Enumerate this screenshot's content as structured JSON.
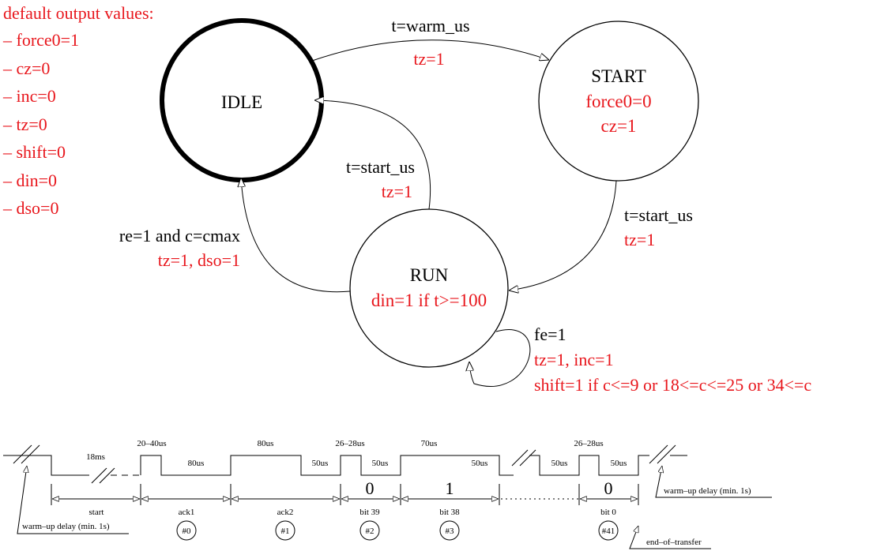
{
  "colors": {
    "black": "#000000",
    "red": "#e8161c"
  },
  "defaults": {
    "title": "default output values:",
    "items": [
      "– force0=1",
      "– cz=0",
      "– inc=0",
      "– tz=0",
      "– shift=0",
      "– din=0",
      "– dso=0"
    ]
  },
  "states": {
    "idle": {
      "name": "IDLE"
    },
    "start": {
      "name": "START",
      "out1": "force0=0",
      "out2": "cz=1"
    },
    "run": {
      "name": "RUN",
      "out1": "din=1 if t>=100"
    }
  },
  "transitions": {
    "idle_start": {
      "cond": "t=warm_us",
      "act": "tz=1"
    },
    "start_run": {
      "cond": "t=start_us",
      "act": "tz=1"
    },
    "run_idle_upper": {
      "cond": "t=start_us",
      "act": "tz=1"
    },
    "run_idle_lower": {
      "cond": "re=1 and c=cmax",
      "act": "tz=1, dso=1"
    },
    "run_self": {
      "cond": "fe=1",
      "act1": "tz=1, inc=1",
      "act2": "shift=1 if c<=9 or 18<=c<=25 or 34<=c"
    }
  },
  "timing": {
    "top_labels": [
      "18ms",
      "20–40us",
      "80us",
      "80us",
      "26–28us",
      "70us",
      "26–28us"
    ],
    "low_labels": [
      "80us",
      "50us",
      "50us",
      "50us",
      "50us",
      "50us"
    ],
    "bits": [
      "0",
      "1",
      "0"
    ],
    "segments": [
      "start",
      "ack1",
      "ack2",
      "bit 39",
      "bit 38",
      "bit 0"
    ],
    "circles": [
      "#0",
      "#1",
      "#2",
      "#3",
      "#41"
    ],
    "notes": {
      "warmup_left": "warm–up delay (min. 1s)",
      "warmup_right": "warm–up delay (min. 1s)",
      "end": "end–of–transfer"
    }
  }
}
